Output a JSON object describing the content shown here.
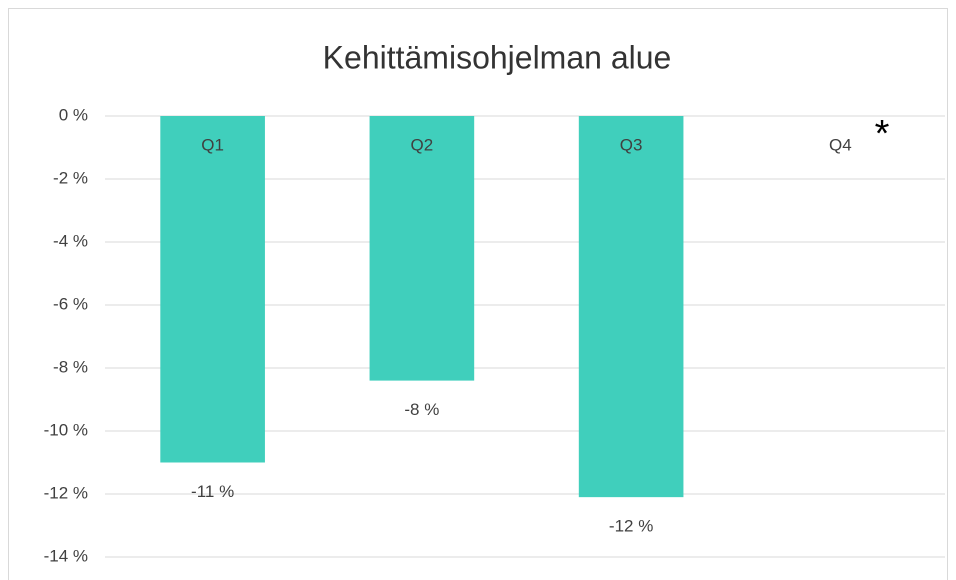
{
  "chart_data": {
    "type": "bar",
    "title": "Kehittämisohjelman alue",
    "categories": [
      "Q1",
      "Q2",
      "Q3",
      "Q4"
    ],
    "values": [
      -11.0,
      -8.4,
      -12.1,
      null
    ],
    "value_labels": [
      "-11 %",
      "-8 %",
      "-12 %",
      null
    ],
    "color": "#40cfbc",
    "ylim": [
      -14,
      0
    ],
    "yticks": [
      {
        "value": 0,
        "label": "0 %"
      },
      {
        "value": -2,
        "label": "-2 %"
      },
      {
        "value": -4,
        "label": "-4 %"
      },
      {
        "value": -6,
        "label": "-6 %"
      },
      {
        "value": -8,
        "label": "-8 %"
      },
      {
        "value": -10,
        "label": "-10 %"
      },
      {
        "value": -12,
        "label": "-12 %"
      },
      {
        "value": -14,
        "label": "-14 %"
      }
    ],
    "grid": true,
    "annotation": "*"
  }
}
